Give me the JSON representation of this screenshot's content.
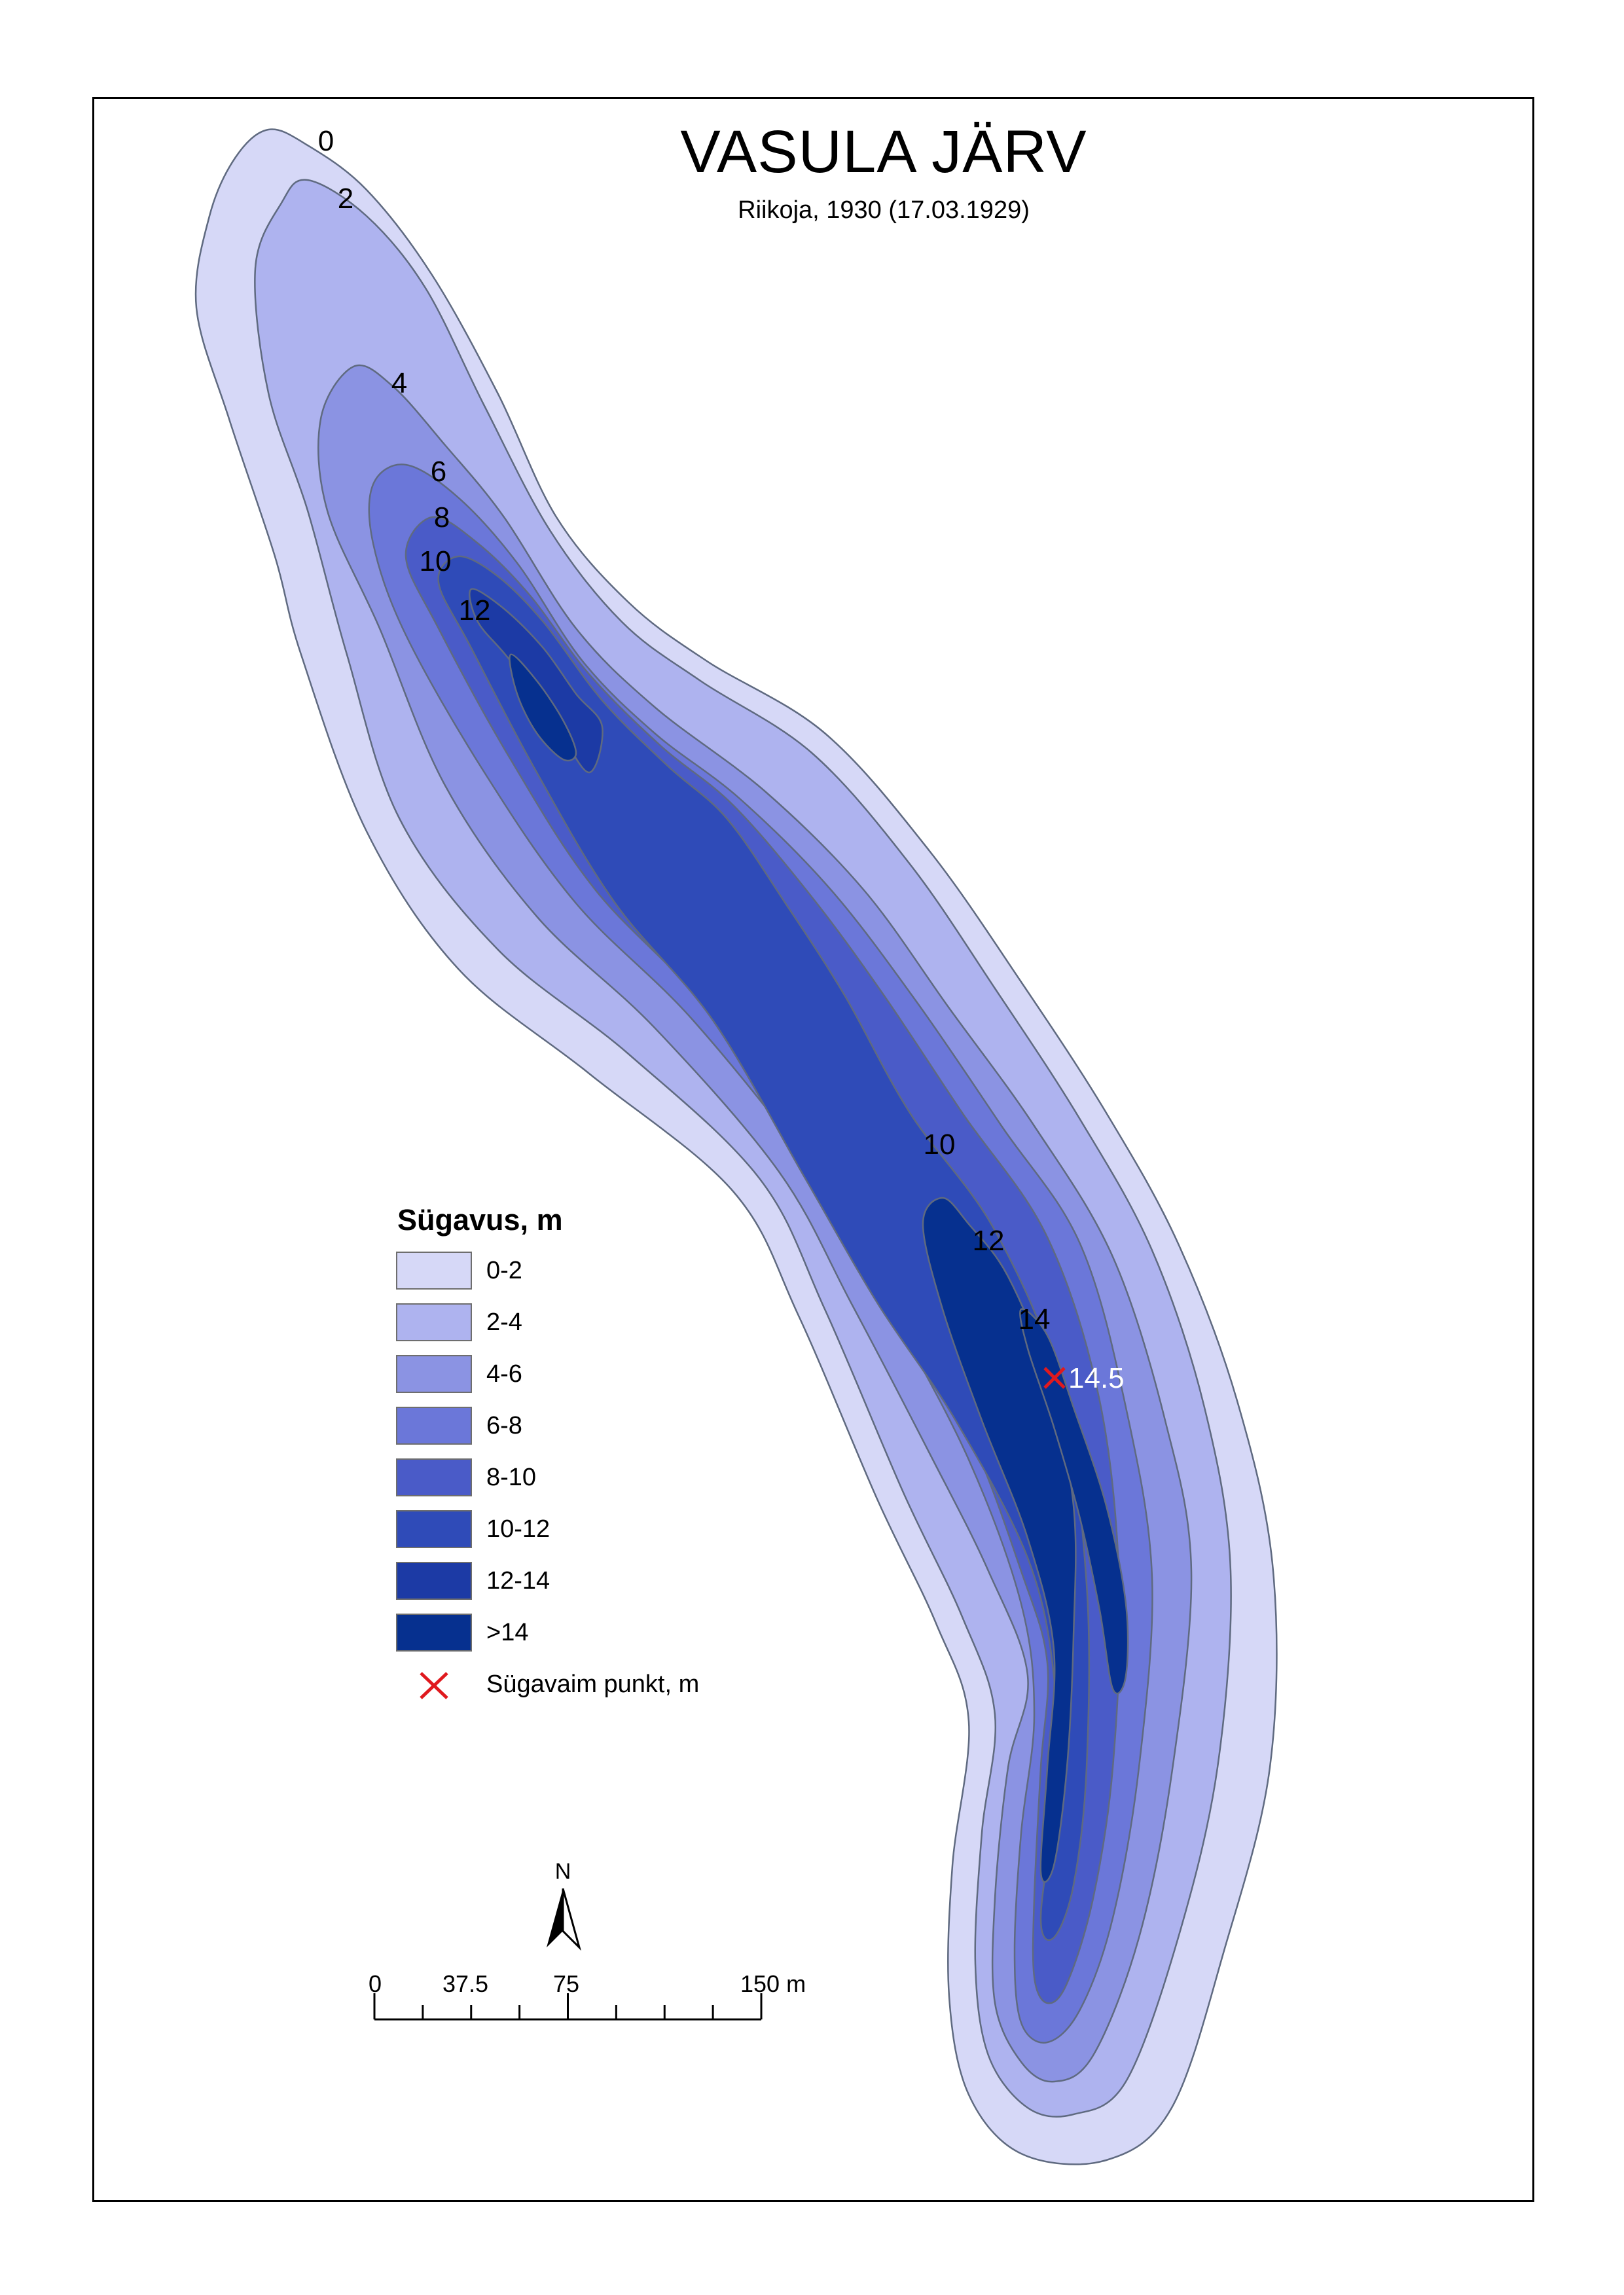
{
  "title": "VASULA JÄRV",
  "subtitle": "Riikoja, 1930 (17.03.1929)",
  "legend": {
    "title": "Sügavus, m",
    "classes": [
      {
        "label": "0-2",
        "color": "#d6d8f7"
      },
      {
        "label": "2-4",
        "color": "#aeb3ef"
      },
      {
        "label": "4-6",
        "color": "#8b93e3"
      },
      {
        "label": "6-8",
        "color": "#6b77d9"
      },
      {
        "label": "8-10",
        "color": "#4a5bc8"
      },
      {
        "label": "10-12",
        "color": "#2f4bb8"
      },
      {
        "label": "12-14",
        "color": "#1c3aa5"
      },
      {
        "label": ">14",
        "color": "#06308f"
      }
    ],
    "deepest_point_label": "Sügavaim punkt, m",
    "deepest_point_color": "#e0191e"
  },
  "contour_labels": [
    "0",
    "2",
    "4",
    "6",
    "8",
    "10",
    "12",
    "10",
    "12",
    "14"
  ],
  "deepest_point_value": "14.5",
  "north_arrow_label": "N",
  "scale_bar": {
    "ticks": [
      "0",
      "37.5",
      "75",
      "150 m"
    ]
  }
}
